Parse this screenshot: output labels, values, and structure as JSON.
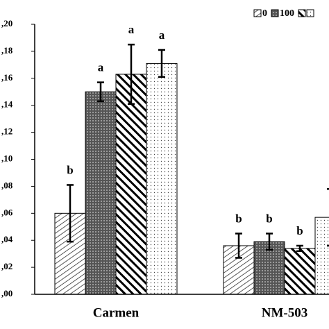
{
  "chart_data": {
    "type": "bar",
    "categories": [
      "Carmen",
      "NM-503"
    ],
    "ylim": [
      0,
      0.2
    ],
    "yticks": [
      {
        "value": 0,
        "label": ",00"
      },
      {
        "value": 0.02,
        "label": ",02"
      },
      {
        "value": 0.04,
        "label": ",04"
      },
      {
        "value": 0.06,
        "label": ",06"
      },
      {
        "value": 0.08,
        "label": ",08"
      },
      {
        "value": 0.1,
        "label": ",10"
      },
      {
        "value": 0.12,
        "label": ",12"
      },
      {
        "value": 0.14,
        "label": ",14"
      },
      {
        "value": 0.16,
        "label": ",16"
      },
      {
        "value": 0.18,
        "label": ",18"
      },
      {
        "value": 0.2,
        "label": ",20"
      }
    ],
    "series": [
      {
        "name": "0",
        "pattern": "hatch-light",
        "values": [
          0.06,
          0.036
        ],
        "errors": [
          0.021,
          0.009
        ],
        "letters": [
          "b",
          "b"
        ]
      },
      {
        "pattern": "dots-dark",
        "name": "100",
        "values": [
          0.15,
          0.039
        ],
        "errors": [
          0.007,
          0.006
        ],
        "letters": [
          "a",
          "b"
        ]
      },
      {
        "pattern": "hatch-bold",
        "values": [
          0.163,
          0.034
        ],
        "errors": [
          0.022,
          0.002
        ],
        "letters": [
          "a",
          "b"
        ]
      },
      {
        "pattern": "dots-light",
        "values": [
          0.171,
          0.057
        ],
        "errors": [
          0.01,
          0.021
        ],
        "letters": [
          "a",
          null
        ]
      }
    ]
  }
}
